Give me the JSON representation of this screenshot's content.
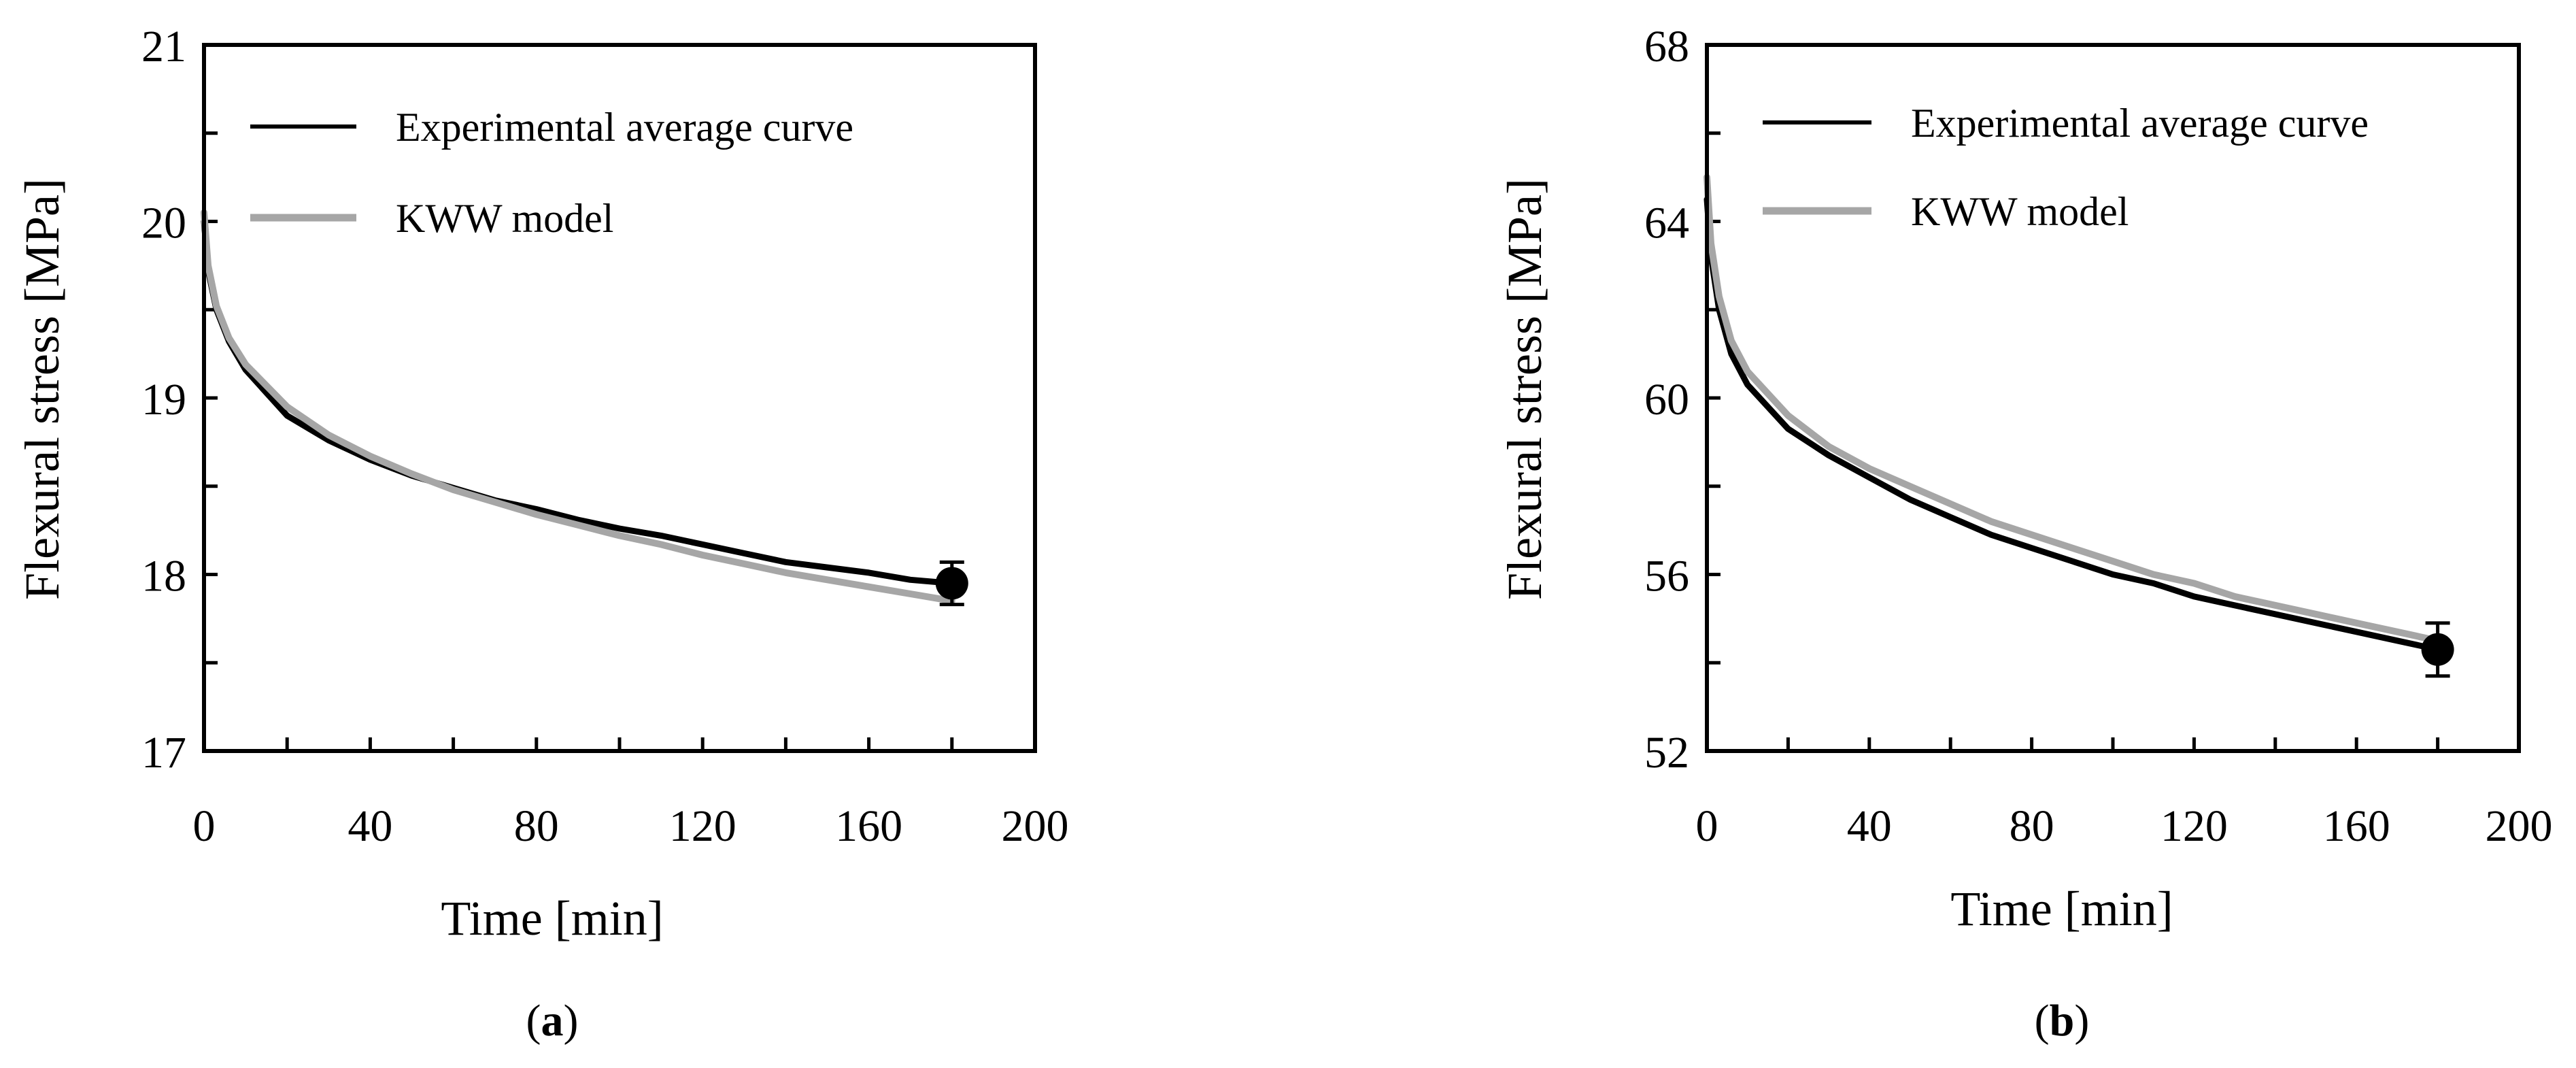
{
  "chart_data": [
    {
      "type": "line",
      "panel_label": "a",
      "xlabel": "Time [min]",
      "ylabel": "Flexural stress [MPa]",
      "xlim": [
        0,
        200
      ],
      "ylim": [
        17,
        21
      ],
      "xticks": [
        0,
        40,
        80,
        120,
        160,
        200
      ],
      "yticks": [
        17,
        18,
        19,
        20,
        21
      ],
      "x_minor_step": 20,
      "y_minor_step": 0.5,
      "legend_position": "top-left",
      "series": [
        {
          "name": "Experimental average curve",
          "color": "#000000",
          "x": [
            0,
            1,
            3,
            6,
            10,
            20,
            30,
            40,
            50,
            60,
            70,
            80,
            90,
            100,
            110,
            120,
            130,
            140,
            150,
            160,
            170,
            180
          ],
          "y": [
            20.0,
            19.72,
            19.5,
            19.32,
            19.16,
            18.9,
            18.76,
            18.65,
            18.56,
            18.49,
            18.42,
            18.37,
            18.31,
            18.26,
            18.22,
            18.17,
            18.12,
            18.07,
            18.04,
            18.01,
            17.97,
            17.95
          ]
        },
        {
          "name": "KWW model",
          "color": "#a6a6a6",
          "x": [
            0,
            1,
            3,
            6,
            10,
            20,
            30,
            40,
            50,
            60,
            70,
            80,
            90,
            100,
            110,
            120,
            130,
            140,
            150,
            160,
            170,
            180
          ],
          "y": [
            20.05,
            19.75,
            19.52,
            19.34,
            19.19,
            18.95,
            18.79,
            18.67,
            18.57,
            18.48,
            18.41,
            18.34,
            18.28,
            18.22,
            18.17,
            18.11,
            18.06,
            18.01,
            17.97,
            17.93,
            17.89,
            17.85
          ]
        }
      ],
      "endpoint": {
        "x": 180,
        "y": 17.95,
        "error": 0.12
      }
    },
    {
      "type": "line",
      "panel_label": "b",
      "xlabel": "Time [min]",
      "ylabel": "Flexural stress [MPa]",
      "xlim": [
        0,
        200
      ],
      "ylim": [
        52,
        68
      ],
      "xticks": [
        0,
        40,
        80,
        120,
        160,
        200
      ],
      "yticks": [
        52,
        56,
        60,
        64,
        68
      ],
      "x_minor_step": 20,
      "y_minor_step": 2,
      "legend_position": "top-left",
      "series": [
        {
          "name": "Experimental average curve",
          "color": "#000000",
          "x": [
            0,
            1,
            3,
            6,
            10,
            20,
            30,
            40,
            50,
            60,
            70,
            80,
            90,
            100,
            110,
            120,
            130,
            140,
            150,
            160,
            170,
            180
          ],
          "y": [
            64.5,
            63.2,
            62.0,
            61.0,
            60.3,
            59.3,
            58.7,
            58.2,
            57.7,
            57.3,
            56.9,
            56.6,
            56.3,
            56.0,
            55.8,
            55.5,
            55.3,
            55.1,
            54.9,
            54.7,
            54.5,
            54.3
          ]
        },
        {
          "name": "KWW model",
          "color": "#a6a6a6",
          "x": [
            0,
            1,
            3,
            6,
            10,
            20,
            30,
            40,
            50,
            60,
            70,
            80,
            90,
            100,
            110,
            120,
            130,
            140,
            150,
            160,
            170,
            180
          ],
          "y": [
            65.0,
            63.5,
            62.3,
            61.3,
            60.6,
            59.6,
            58.9,
            58.4,
            58.0,
            57.6,
            57.2,
            56.9,
            56.6,
            56.3,
            56.0,
            55.8,
            55.5,
            55.3,
            55.1,
            54.9,
            54.7,
            54.5
          ]
        }
      ],
      "endpoint": {
        "x": 180,
        "y": 54.3,
        "error": 0.6
      }
    }
  ]
}
